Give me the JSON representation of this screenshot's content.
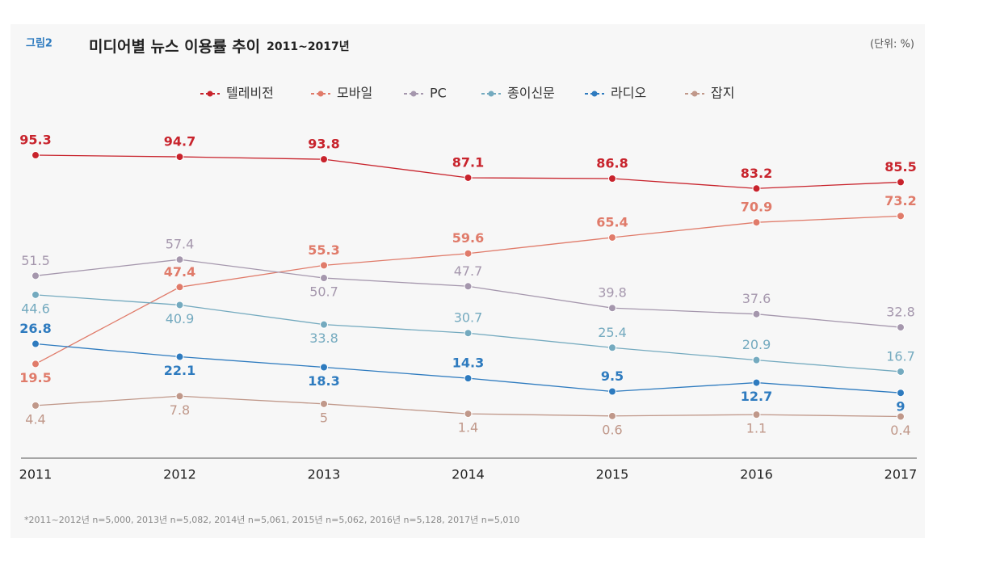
{
  "figure_label": "그림2",
  "unit_note": "(단위: %)",
  "footnote": "*2011~2012년 n=5,000, 2013년 n=5,082, 2014년 n=5,061, 2015년 n=5,062, 2016년 n=5,128, 2017년 n=5,010",
  "chart_data": {
    "type": "line",
    "title": "미디어별 뉴스 이용률 추이",
    "subtitle": "2011~2017년",
    "categories": [
      "2011",
      "2012",
      "2013",
      "2014",
      "2015",
      "2016",
      "2017"
    ],
    "ylim": [
      -15,
      100
    ],
    "series": [
      {
        "name": "텔레비전",
        "color": "#c8232c",
        "values": [
          95.3,
          94.7,
          93.8,
          87.1,
          86.8,
          83.2,
          85.5
        ]
      },
      {
        "name": "모바일",
        "color": "#e07b6a",
        "values": [
          19.5,
          47.4,
          55.3,
          59.6,
          65.4,
          70.9,
          73.2
        ]
      },
      {
        "name": "PC",
        "color": "#a597ad",
        "values": [
          51.5,
          57.4,
          50.7,
          47.7,
          39.8,
          37.6,
          32.8
        ]
      },
      {
        "name": "종이신문",
        "color": "#74aabf",
        "values": [
          44.6,
          40.9,
          33.8,
          30.7,
          25.4,
          20.9,
          16.7
        ]
      },
      {
        "name": "라디오",
        "color": "#2e7bbf",
        "values": [
          26.8,
          22.1,
          18.3,
          14.3,
          9.5,
          12.7,
          9
        ]
      },
      {
        "name": "잡지",
        "color": "#c0988a",
        "values": [
          4.4,
          7.8,
          5,
          1.4,
          0.6,
          1.1,
          0.4
        ]
      }
    ]
  }
}
